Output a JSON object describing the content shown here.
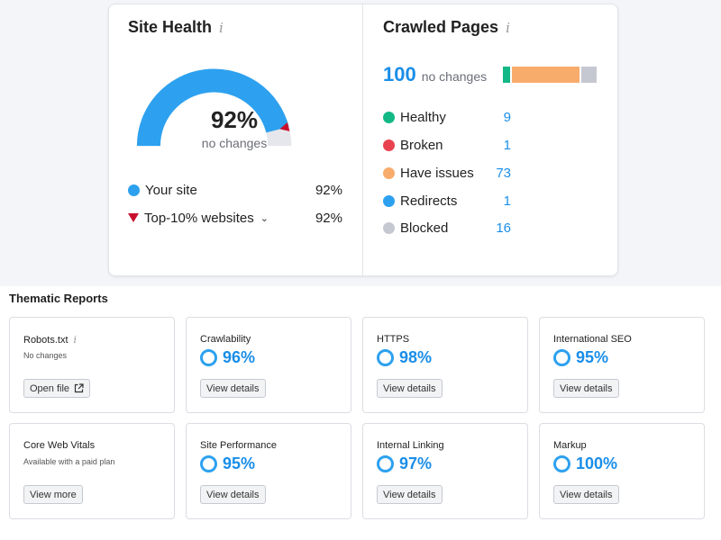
{
  "site_health": {
    "title": "Site Health",
    "info_icon": "i",
    "score": "92%",
    "score_sub": "no changes",
    "score_value": 0.92,
    "legend": [
      {
        "label": "Your site",
        "value": "92%",
        "color": "#2da1ef"
      },
      {
        "label": "Top-10% websites",
        "value": "92%",
        "color": "#c8102e"
      }
    ]
  },
  "crawled_pages": {
    "title": "Crawled Pages",
    "info_icon": "i",
    "total": "100",
    "total_sub": "no changes",
    "rows": [
      {
        "label": "Healthy",
        "count": "9",
        "color": "#12b886"
      },
      {
        "label": "Broken",
        "count": "1",
        "color": "#e9424f"
      },
      {
        "label": "Have issues",
        "count": "73",
        "color": "#f8ac6c"
      },
      {
        "label": "Redirects",
        "count": "1",
        "color": "#2da1ef"
      },
      {
        "label": "Blocked",
        "count": "16",
        "color": "#c6c8d1"
      }
    ]
  },
  "thematic": {
    "title": "Thematic Reports",
    "tiles": [
      {
        "title": "Robots.txt",
        "sub": "No changes",
        "button": "Open file"
      },
      {
        "title": "Crawlability",
        "score": "96%",
        "button": "View details"
      },
      {
        "title": "HTTPS",
        "score": "98%",
        "button": "View details"
      },
      {
        "title": "International SEO",
        "score": "95%",
        "button": "View details"
      },
      {
        "title": "Core Web Vitals",
        "sub": "Available with a paid plan",
        "button": "View more"
      },
      {
        "title": "Site Performance",
        "score": "95%",
        "button": "View details"
      },
      {
        "title": "Internal Linking",
        "score": "97%",
        "button": "View details"
      },
      {
        "title": "Markup",
        "score": "100%",
        "button": "View details"
      }
    ]
  }
}
